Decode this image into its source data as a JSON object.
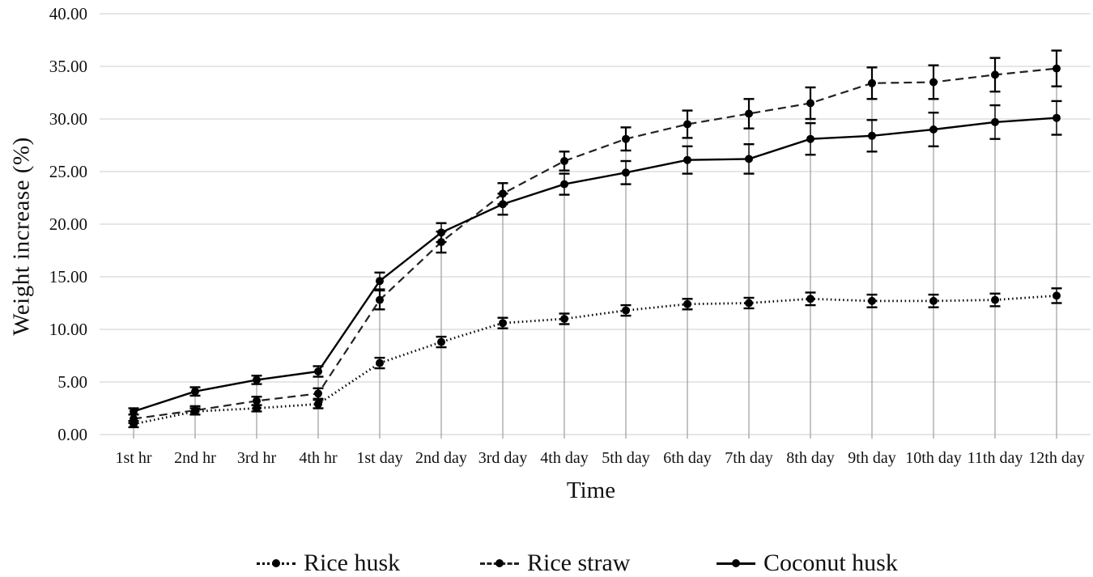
{
  "chart_data": {
    "type": "line",
    "title": "",
    "xlabel": "Time",
    "ylabel": "Weight increase (%)",
    "ylim": [
      0,
      40
    ],
    "ytick_step": 5,
    "ytick_decimals": 2,
    "grid": "horizontal gridlines every 5 units; gray vertical drop line at each category",
    "legend_position": "bottom",
    "error_bars": true,
    "categories": [
      "1st hr",
      "2nd hr",
      "3rd hr",
      "4th hr",
      "1st day",
      "2nd day",
      "3rd day",
      "4th day",
      "5th day",
      "6th day",
      "7th day",
      "8th day",
      "9th day",
      "10th day",
      "11th day",
      "12th day"
    ],
    "series": [
      {
        "name": "Rice husk",
        "style": "dotted",
        "color": "#000000",
        "values": [
          1.0,
          2.2,
          2.5,
          2.9,
          6.8,
          8.8,
          10.6,
          11.0,
          11.8,
          12.4,
          12.5,
          12.9,
          12.7,
          12.7,
          12.8,
          13.2
        ],
        "errors": [
          0.3,
          0.3,
          0.3,
          0.4,
          0.5,
          0.5,
          0.5,
          0.5,
          0.5,
          0.5,
          0.5,
          0.6,
          0.6,
          0.6,
          0.6,
          0.7
        ]
      },
      {
        "name": "Rice straw",
        "style": "dashed",
        "color": "#222222",
        "values": [
          1.5,
          2.3,
          3.2,
          3.9,
          12.8,
          18.3,
          22.9,
          26.0,
          28.1,
          29.5,
          30.5,
          31.5,
          33.4,
          33.5,
          34.2,
          34.8
        ],
        "errors": [
          0.4,
          0.4,
          0.4,
          0.5,
          0.9,
          1.0,
          1.0,
          0.9,
          1.1,
          1.3,
          1.4,
          1.5,
          1.5,
          1.6,
          1.6,
          1.7
        ]
      },
      {
        "name": "Coconut husk",
        "style": "solid",
        "color": "#000000",
        "values": [
          2.2,
          4.1,
          5.2,
          6.0,
          14.6,
          19.2,
          21.9,
          23.8,
          24.9,
          26.1,
          26.2,
          28.1,
          28.4,
          29.0,
          29.7,
          30.1
        ],
        "errors": [
          0.3,
          0.4,
          0.4,
          0.5,
          0.8,
          0.9,
          1.0,
          1.0,
          1.1,
          1.3,
          1.4,
          1.5,
          1.5,
          1.6,
          1.6,
          1.6
        ]
      }
    ]
  },
  "colors": {
    "background": "#ffffff",
    "text": "#111111",
    "h_gridline": "#d6d6d6",
    "category_line": "#9c9c9c",
    "series": "#000000"
  }
}
